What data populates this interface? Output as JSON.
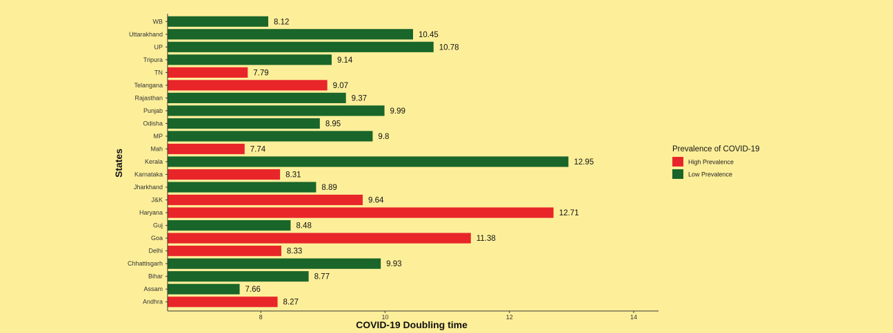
{
  "chart_data": {
    "type": "bar",
    "orientation": "horizontal",
    "xlabel": "COVID-19 Doubling time",
    "ylabel": "States",
    "xlim": [
      6.5,
      14.3
    ],
    "xticks": [
      8,
      10,
      12,
      14
    ],
    "grid": false,
    "legend": {
      "title": "Prevalence of COVID-19",
      "placement": "right",
      "entries": [
        {
          "name": "High Prevalence",
          "color": "#e8262a"
        },
        {
          "name": "Low Prevalence",
          "color": "#19652a"
        }
      ]
    },
    "categories": [
      "WB",
      "Uttarakhand",
      "UP",
      "Tripura",
      "TN",
      "Telangana",
      "Rajasthan",
      "Punjab",
      "Odisha",
      "MP",
      "Mah",
      "Kerala",
      "Karnataka",
      "Jharkhand",
      "J&K",
      "Haryana",
      "Guj",
      "Goa",
      "Delhi",
      "Chhattisgarh",
      "Bihar",
      "Assam",
      "Andhra"
    ],
    "values": [
      8.12,
      10.45,
      10.78,
      9.14,
      7.79,
      9.07,
      9.37,
      9.99,
      8.95,
      9.8,
      7.74,
      12.95,
      8.31,
      8.89,
      9.64,
      12.71,
      8.48,
      11.38,
      8.33,
      9.93,
      8.77,
      7.66,
      8.27
    ],
    "value_labels": [
      "8.12",
      "10.45",
      "10.78",
      "9.14",
      "7.79",
      "9.07",
      "9.37",
      "9.99",
      "8.95",
      "9.8",
      "7.74",
      "12.95",
      "8.31",
      "8.89",
      "9.64",
      "12.71",
      "8.48",
      "11.38",
      "8.33",
      "9.93",
      "8.77",
      "7.66",
      "8.27"
    ],
    "prevalence": [
      "Low Prevalence",
      "Low Prevalence",
      "Low Prevalence",
      "Low Prevalence",
      "High Prevalence",
      "High Prevalence",
      "Low Prevalence",
      "Low Prevalence",
      "Low Prevalence",
      "Low Prevalence",
      "High Prevalence",
      "Low Prevalence",
      "High Prevalence",
      "Low Prevalence",
      "High Prevalence",
      "High Prevalence",
      "Low Prevalence",
      "High Prevalence",
      "High Prevalence",
      "Low Prevalence",
      "Low Prevalence",
      "Low Prevalence",
      "High Prevalence"
    ]
  }
}
